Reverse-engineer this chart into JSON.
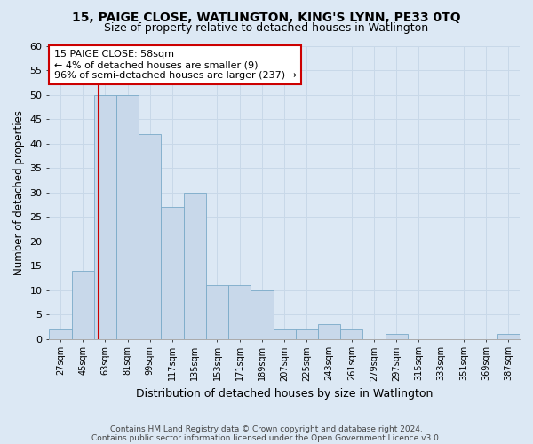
{
  "title1": "15, PAIGE CLOSE, WATLINGTON, KING'S LYNN, PE33 0TQ",
  "title2": "Size of property relative to detached houses in Watlington",
  "xlabel": "Distribution of detached houses by size in Watlington",
  "ylabel": "Number of detached properties",
  "bins": [
    "27sqm",
    "45sqm",
    "63sqm",
    "81sqm",
    "99sqm",
    "117sqm",
    "135sqm",
    "153sqm",
    "171sqm",
    "189sqm",
    "207sqm",
    "225sqm",
    "243sqm",
    "261sqm",
    "279sqm",
    "297sqm",
    "315sqm",
    "333sqm",
    "351sqm",
    "369sqm",
    "387sqm"
  ],
  "values": [
    2,
    14,
    50,
    50,
    42,
    27,
    30,
    11,
    11,
    10,
    2,
    2,
    3,
    2,
    0,
    1,
    0,
    0,
    0,
    0,
    1
  ],
  "bar_color": "#c8d8ea",
  "bar_edge_color": "#7aaac8",
  "vline_color": "#cc0000",
  "vline_xindex": 1.72,
  "annotation_text": "15 PAIGE CLOSE: 58sqm\n← 4% of detached houses are smaller (9)\n96% of semi-detached houses are larger (237) →",
  "annotation_box_color": "#ffffff",
  "annotation_box_edge": "#cc0000",
  "footnote1": "Contains HM Land Registry data © Crown copyright and database right 2024.",
  "footnote2": "Contains public sector information licensed under the Open Government Licence v3.0.",
  "ylim": [
    0,
    60
  ],
  "yticks": [
    0,
    5,
    10,
    15,
    20,
    25,
    30,
    35,
    40,
    45,
    50,
    55,
    60
  ],
  "grid_color": "#c8d8e8",
  "bg_color": "#dce8f4",
  "title_fontsize": 10,
  "subtitle_fontsize": 9
}
